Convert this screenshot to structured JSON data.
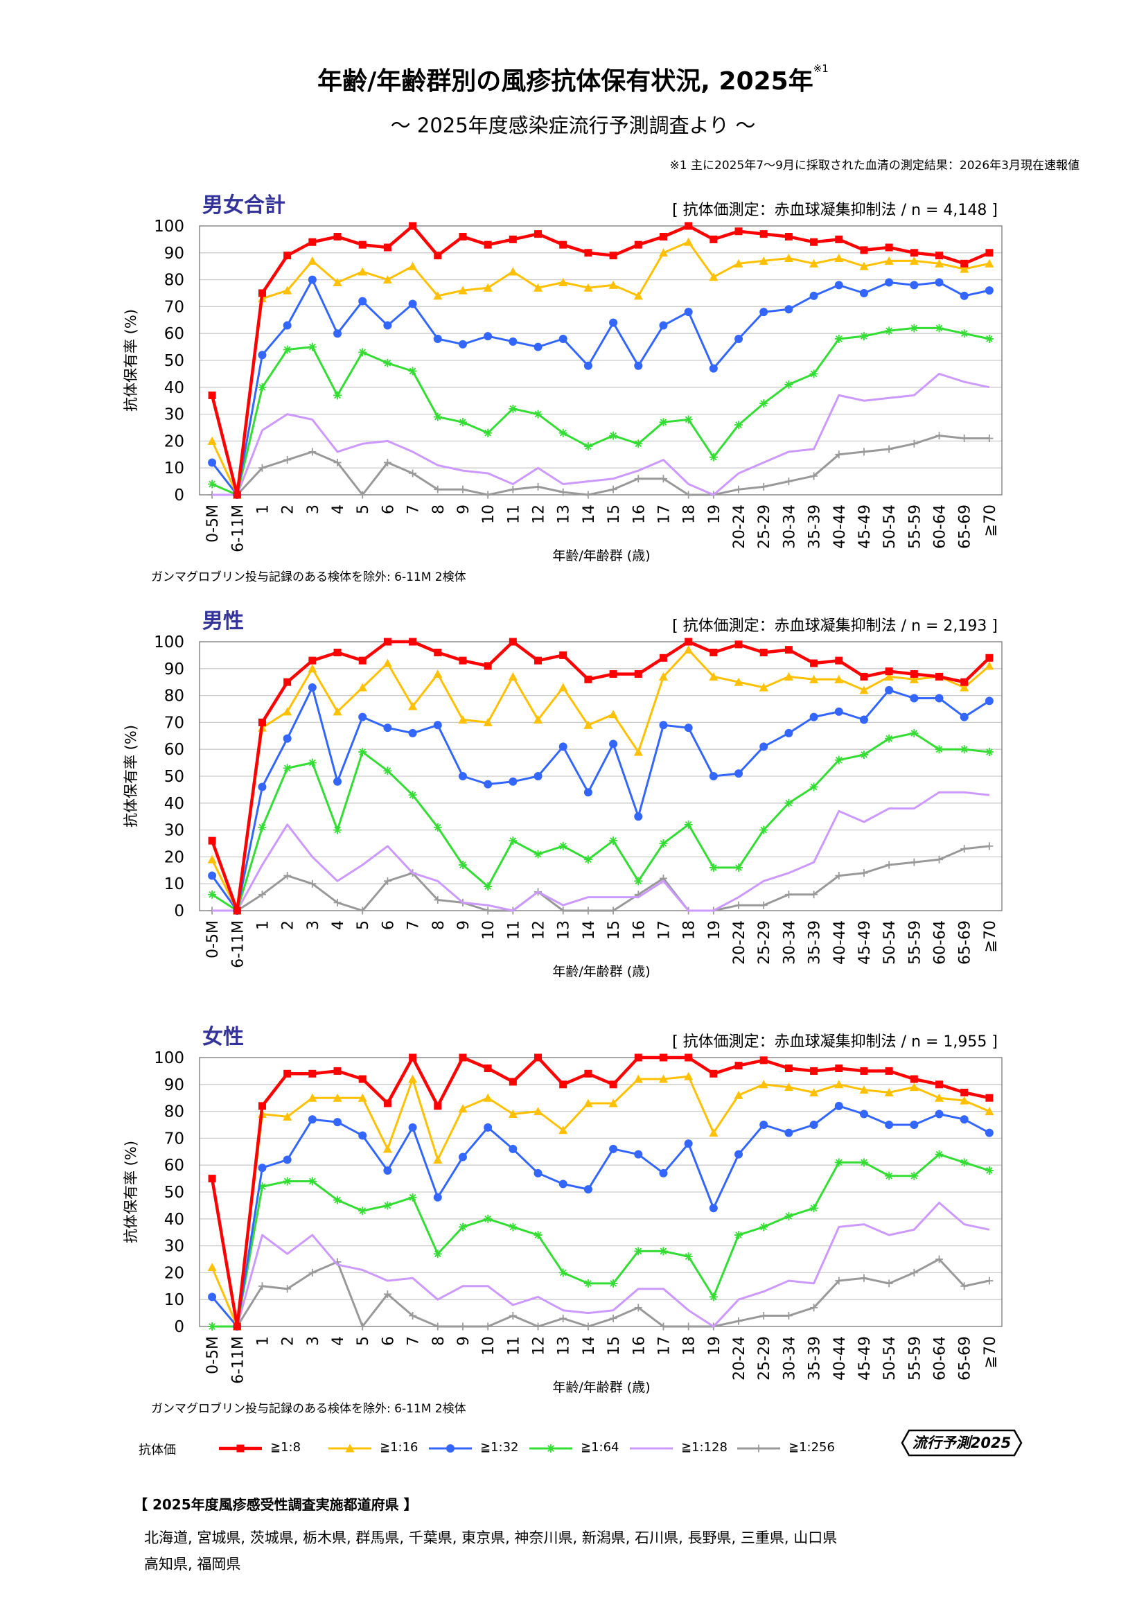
{
  "title": "年齢/年齢群別の風疹抗体保有状況, 2025年",
  "title_sup": "※1",
  "subtitle": "～ 2025年度感染症流行予測調査より ～",
  "note1": "※1  主に2025年7～9月に採取された血清の測定結果：2026年3月現在速報値",
  "gamma_note": "ガンマグロブリン投与記録のある検体を除外:   6-11M   2検体",
  "colors": {
    "s8": "#ff0000",
    "s16": "#ffc000",
    "s32": "#3366ff",
    "s64": "#33dd33",
    "s128": "#cc99ff",
    "s256": "#999999",
    "title_blue": "#333399",
    "grid": "#cccccc"
  },
  "legend": {
    "title": "抗体価",
    "items": [
      "≧1:8",
      "≧1:16",
      "≧1:32",
      "≧1:64",
      "≧1:128",
      "≧1:256"
    ],
    "badge": "流行予測2025"
  },
  "prefectures": {
    "title": "【 2025年度風疹感受性調査実施都道府県 】",
    "line1": "北海道,  宮城県,  茨城県,  栃木県,  群馬県,  千葉県,  東京県,  神奈川県,  新潟県,  石川県,  長野県,  三重県,  山口県",
    "line2": "高知県,  福岡県"
  },
  "chart_data": [
    {
      "type": "line",
      "title": "男女合計",
      "method": "[ 抗体価測定：赤血球凝集抑制法 / n = 4,148 ]",
      "xlabel": "年齢/年齢群 (歳)",
      "ylabel": "抗体保有率 (%)",
      "ylim": [
        0,
        100
      ],
      "yticks": [
        "0",
        "10",
        "20",
        "30",
        "40",
        "50",
        "60",
        "70",
        "80",
        "90",
        "100"
      ],
      "categories": [
        "0-5M",
        "6-11M",
        "1",
        "2",
        "3",
        "4",
        "5",
        "6",
        "7",
        "8",
        "9",
        "10",
        "11",
        "12",
        "13",
        "14",
        "15",
        "16",
        "17",
        "18",
        "19",
        "20-24",
        "25-29",
        "30-34",
        "35-39",
        "40-44",
        "45-49",
        "50-54",
        "55-59",
        "60-64",
        "65-69",
        "≧70"
      ],
      "series": [
        {
          "name": "≧1:8",
          "values": [
            37,
            0,
            75,
            89,
            94,
            96,
            93,
            92,
            100,
            89,
            96,
            93,
            95,
            97,
            93,
            90,
            89,
            93,
            96,
            100,
            95,
            98,
            97,
            96,
            94,
            95,
            91,
            92,
            90,
            89,
            86,
            90
          ]
        },
        {
          "name": "≧1:16",
          "values": [
            20,
            0,
            73,
            76,
            87,
            79,
            83,
            80,
            85,
            74,
            76,
            77,
            83,
            77,
            79,
            77,
            78,
            74,
            90,
            94,
            81,
            86,
            87,
            88,
            86,
            88,
            85,
            87,
            87,
            86,
            84,
            86
          ]
        },
        {
          "name": "≧1:32",
          "values": [
            12,
            0,
            52,
            63,
            80,
            60,
            72,
            63,
            71,
            58,
            56,
            59,
            57,
            55,
            58,
            48,
            64,
            48,
            63,
            68,
            47,
            58,
            68,
            69,
            74,
            78,
            75,
            79,
            78,
            79,
            74,
            76
          ]
        },
        {
          "name": "≧1:64",
          "values": [
            4,
            0,
            40,
            54,
            55,
            37,
            53,
            49,
            46,
            29,
            27,
            23,
            32,
            30,
            23,
            18,
            22,
            19,
            27,
            28,
            14,
            26,
            34,
            41,
            45,
            58,
            59,
            61,
            62,
            62,
            60,
            58
          ]
        },
        {
          "name": "≧1:128",
          "values": [
            0,
            0,
            24,
            30,
            28,
            16,
            19,
            20,
            16,
            11,
            9,
            8,
            4,
            10,
            4,
            5,
            6,
            9,
            13,
            4,
            0,
            8,
            12,
            16,
            17,
            37,
            35,
            36,
            37,
            45,
            42,
            40
          ]
        },
        {
          "name": "≧1:256",
          "values": [
            0,
            0,
            10,
            13,
            16,
            12,
            0,
            12,
            8,
            2,
            2,
            0,
            2,
            3,
            1,
            0,
            2,
            6,
            6,
            0,
            0,
            2,
            3,
            5,
            7,
            15,
            16,
            17,
            19,
            22,
            21,
            21
          ]
        }
      ]
    },
    {
      "type": "line",
      "title": "男性",
      "method": "[ 抗体価測定：赤血球凝集抑制法 / n = 2,193 ]",
      "xlabel": "年齢/年齢群 (歳)",
      "ylabel": "抗体保有率 (%)",
      "ylim": [
        0,
        100
      ],
      "yticks": [
        "0",
        "10",
        "20",
        "30",
        "40",
        "50",
        "60",
        "70",
        "80",
        "90",
        "100"
      ],
      "categories": [
        "0-5M",
        "6-11M",
        "1",
        "2",
        "3",
        "4",
        "5",
        "6",
        "7",
        "8",
        "9",
        "10",
        "11",
        "12",
        "13",
        "14",
        "15",
        "16",
        "17",
        "18",
        "19",
        "20-24",
        "25-29",
        "30-34",
        "35-39",
        "40-44",
        "45-49",
        "50-54",
        "55-59",
        "60-64",
        "65-69",
        "≧70"
      ],
      "series": [
        {
          "name": "≧1:8",
          "values": [
            26,
            0,
            70,
            85,
            93,
            96,
            93,
            100,
            100,
            96,
            93,
            91,
            100,
            93,
            95,
            86,
            88,
            88,
            94,
            100,
            96,
            99,
            96,
            97,
            92,
            93,
            87,
            89,
            88,
            87,
            85,
            94
          ]
        },
        {
          "name": "≧1:16",
          "values": [
            19,
            0,
            68,
            74,
            90,
            74,
            83,
            92,
            76,
            88,
            71,
            70,
            87,
            71,
            83,
            69,
            73,
            59,
            87,
            97,
            87,
            85,
            83,
            87,
            86,
            86,
            82,
            87,
            86,
            87,
            83,
            91
          ]
        },
        {
          "name": "≧1:32",
          "values": [
            13,
            0,
            46,
            64,
            83,
            48,
            72,
            68,
            66,
            69,
            50,
            47,
            48,
            50,
            61,
            44,
            62,
            35,
            69,
            68,
            50,
            51,
            61,
            66,
            72,
            74,
            71,
            82,
            79,
            79,
            72,
            78
          ]
        },
        {
          "name": "≧1:64",
          "values": [
            6,
            0,
            31,
            53,
            55,
            30,
            59,
            52,
            43,
            31,
            17,
            9,
            26,
            21,
            24,
            19,
            26,
            11,
            25,
            32,
            16,
            16,
            30,
            40,
            46,
            56,
            58,
            64,
            66,
            60,
            60,
            59
          ]
        },
        {
          "name": "≧1:128",
          "values": [
            0,
            0,
            17,
            32,
            20,
            11,
            17,
            24,
            14,
            11,
            3,
            2,
            0,
            7,
            2,
            5,
            5,
            5,
            11,
            0,
            0,
            5,
            11,
            14,
            18,
            37,
            33,
            38,
            38,
            44,
            44,
            43
          ]
        },
        {
          "name": "≧1:256",
          "values": [
            0,
            0,
            6,
            13,
            10,
            3,
            0,
            11,
            14,
            4,
            3,
            0,
            0,
            7,
            0,
            0,
            0,
            6,
            12,
            0,
            0,
            2,
            2,
            6,
            6,
            13,
            14,
            17,
            18,
            19,
            23,
            24
          ]
        }
      ]
    },
    {
      "type": "line",
      "title": "女性",
      "method": "[ 抗体価測定：赤血球凝集抑制法 / n = 1,955 ]",
      "xlabel": "年齢/年齢群 (歳)",
      "ylabel": "抗体保有率 (%)",
      "ylim": [
        0,
        100
      ],
      "yticks": [
        "0",
        "10",
        "20",
        "30",
        "40",
        "50",
        "60",
        "70",
        "80",
        "90",
        "100"
      ],
      "categories": [
        "0-5M",
        "6-11M",
        "1",
        "2",
        "3",
        "4",
        "5",
        "6",
        "7",
        "8",
        "9",
        "10",
        "11",
        "12",
        "13",
        "14",
        "15",
        "16",
        "17",
        "18",
        "19",
        "20-24",
        "25-29",
        "30-34",
        "35-39",
        "40-44",
        "45-49",
        "50-54",
        "55-59",
        "60-64",
        "65-69",
        "≧70"
      ],
      "series": [
        {
          "name": "≧1:8",
          "values": [
            55,
            0,
            82,
            94,
            94,
            95,
            92,
            83,
            100,
            82,
            100,
            96,
            91,
            100,
            90,
            94,
            90,
            100,
            100,
            100,
            94,
            97,
            99,
            96,
            95,
            96,
            95,
            95,
            92,
            90,
            87,
            85
          ]
        },
        {
          "name": "≧1:16",
          "values": [
            22,
            0,
            79,
            78,
            85,
            85,
            85,
            66,
            92,
            62,
            81,
            85,
            79,
            80,
            73,
            83,
            83,
            92,
            92,
            93,
            72,
            86,
            90,
            89,
            87,
            90,
            88,
            87,
            89,
            85,
            84,
            80
          ]
        },
        {
          "name": "≧1:32",
          "values": [
            11,
            0,
            59,
            62,
            77,
            76,
            71,
            58,
            74,
            48,
            63,
            74,
            66,
            57,
            53,
            51,
            66,
            64,
            57,
            68,
            44,
            64,
            75,
            72,
            75,
            82,
            79,
            75,
            75,
            79,
            77,
            72
          ]
        },
        {
          "name": "≧1:64",
          "values": [
            0,
            0,
            52,
            54,
            54,
            47,
            43,
            45,
            48,
            27,
            37,
            40,
            37,
            34,
            20,
            16,
            16,
            28,
            28,
            26,
            11,
            34,
            37,
            41,
            44,
            61,
            61,
            56,
            56,
            64,
            61,
            58
          ]
        },
        {
          "name": "≧1:128",
          "values": [
            0,
            0,
            34,
            27,
            34,
            23,
            21,
            17,
            18,
            10,
            15,
            15,
            8,
            11,
            6,
            5,
            6,
            14,
            14,
            6,
            0,
            10,
            13,
            17,
            16,
            37,
            38,
            34,
            36,
            46,
            38,
            36
          ]
        },
        {
          "name": "≧1:256",
          "values": [
            0,
            0,
            15,
            14,
            20,
            24,
            0,
            12,
            4,
            0,
            0,
            0,
            4,
            0,
            3,
            0,
            3,
            7,
            0,
            0,
            0,
            2,
            4,
            4,
            7,
            17,
            18,
            16,
            20,
            25,
            15,
            17
          ]
        }
      ]
    }
  ]
}
